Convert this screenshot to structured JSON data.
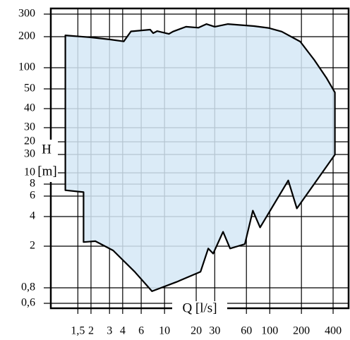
{
  "chart_data": {
    "type": "area",
    "x_label": "Q [l/s]",
    "y_label": "H",
    "y_unit": "[m]",
    "xscale": "log",
    "yscale": "log",
    "grid": true,
    "color": "#d5e8f6",
    "xlim": [
      0.83,
      570
    ],
    "ylim": [
      0.56,
      330
    ],
    "xticks": [
      {
        "value": 1.5,
        "label": "1,5"
      },
      2,
      3,
      4,
      6,
      10,
      20,
      30,
      60,
      100,
      200,
      400
    ],
    "yticks": [
      300,
      200,
      100,
      50,
      40,
      30,
      20,
      30,
      10,
      8,
      6,
      4,
      2,
      {
        "value": 0.8,
        "label": "0,8"
      },
      {
        "value": 0.6,
        "label": "0,6"
      }
    ],
    "x": [
      1.14,
      2.0,
      3,
      4.1,
      4.8,
      7.3,
      7.8,
      8.5,
      11,
      12,
      16,
      21,
      25,
      30,
      40,
      71,
      97,
      130,
      195,
      265,
      345,
      416,
      416,
      181,
      150,
      81,
      69,
      58,
      42,
      36,
      29,
      26,
      22,
      13,
      7.6,
      5.2,
      3.25,
      2.2,
      1.7,
      1.7,
      1.14
    ],
    "values": [
      205,
      197,
      188,
      180,
      220,
      227,
      213,
      221,
      210,
      219,
      239,
      235,
      251,
      239,
      251,
      242,
      234,
      219,
      179,
      119,
      72,
      48,
      15,
      4.7,
      8.6,
      3.1,
      4.5,
      2.1,
      1.9,
      2.8,
      1.7,
      1.9,
      1.14,
      0.91,
      0.75,
      1.14,
      1.82,
      2.25,
      2.2,
      6.6,
      6.9
    ]
  }
}
